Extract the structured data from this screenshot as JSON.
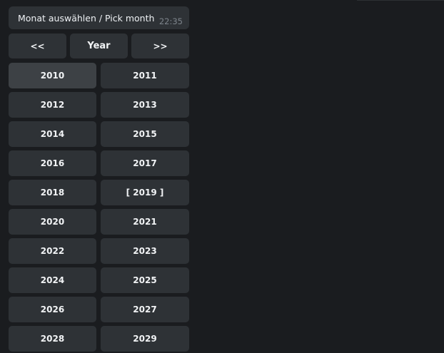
{
  "message": {
    "text": "Monat auswählen / Pick month",
    "time": "22:35"
  },
  "nav": {
    "prev": "<<",
    "title": "Year",
    "next": ">>"
  },
  "years": [
    "2010",
    "2011",
    "2012",
    "2013",
    "2014",
    "2015",
    "2016",
    "2017",
    "2018",
    "[ 2019 ]",
    "2020",
    "2021",
    "2022",
    "2023",
    "2024",
    "2025",
    "2026",
    "2027",
    "2028",
    "2029"
  ],
  "hovered": "2010",
  "colors": {
    "background": "#1a1c1f",
    "button": "#2e3236",
    "button_hover": "#3d4145"
  }
}
